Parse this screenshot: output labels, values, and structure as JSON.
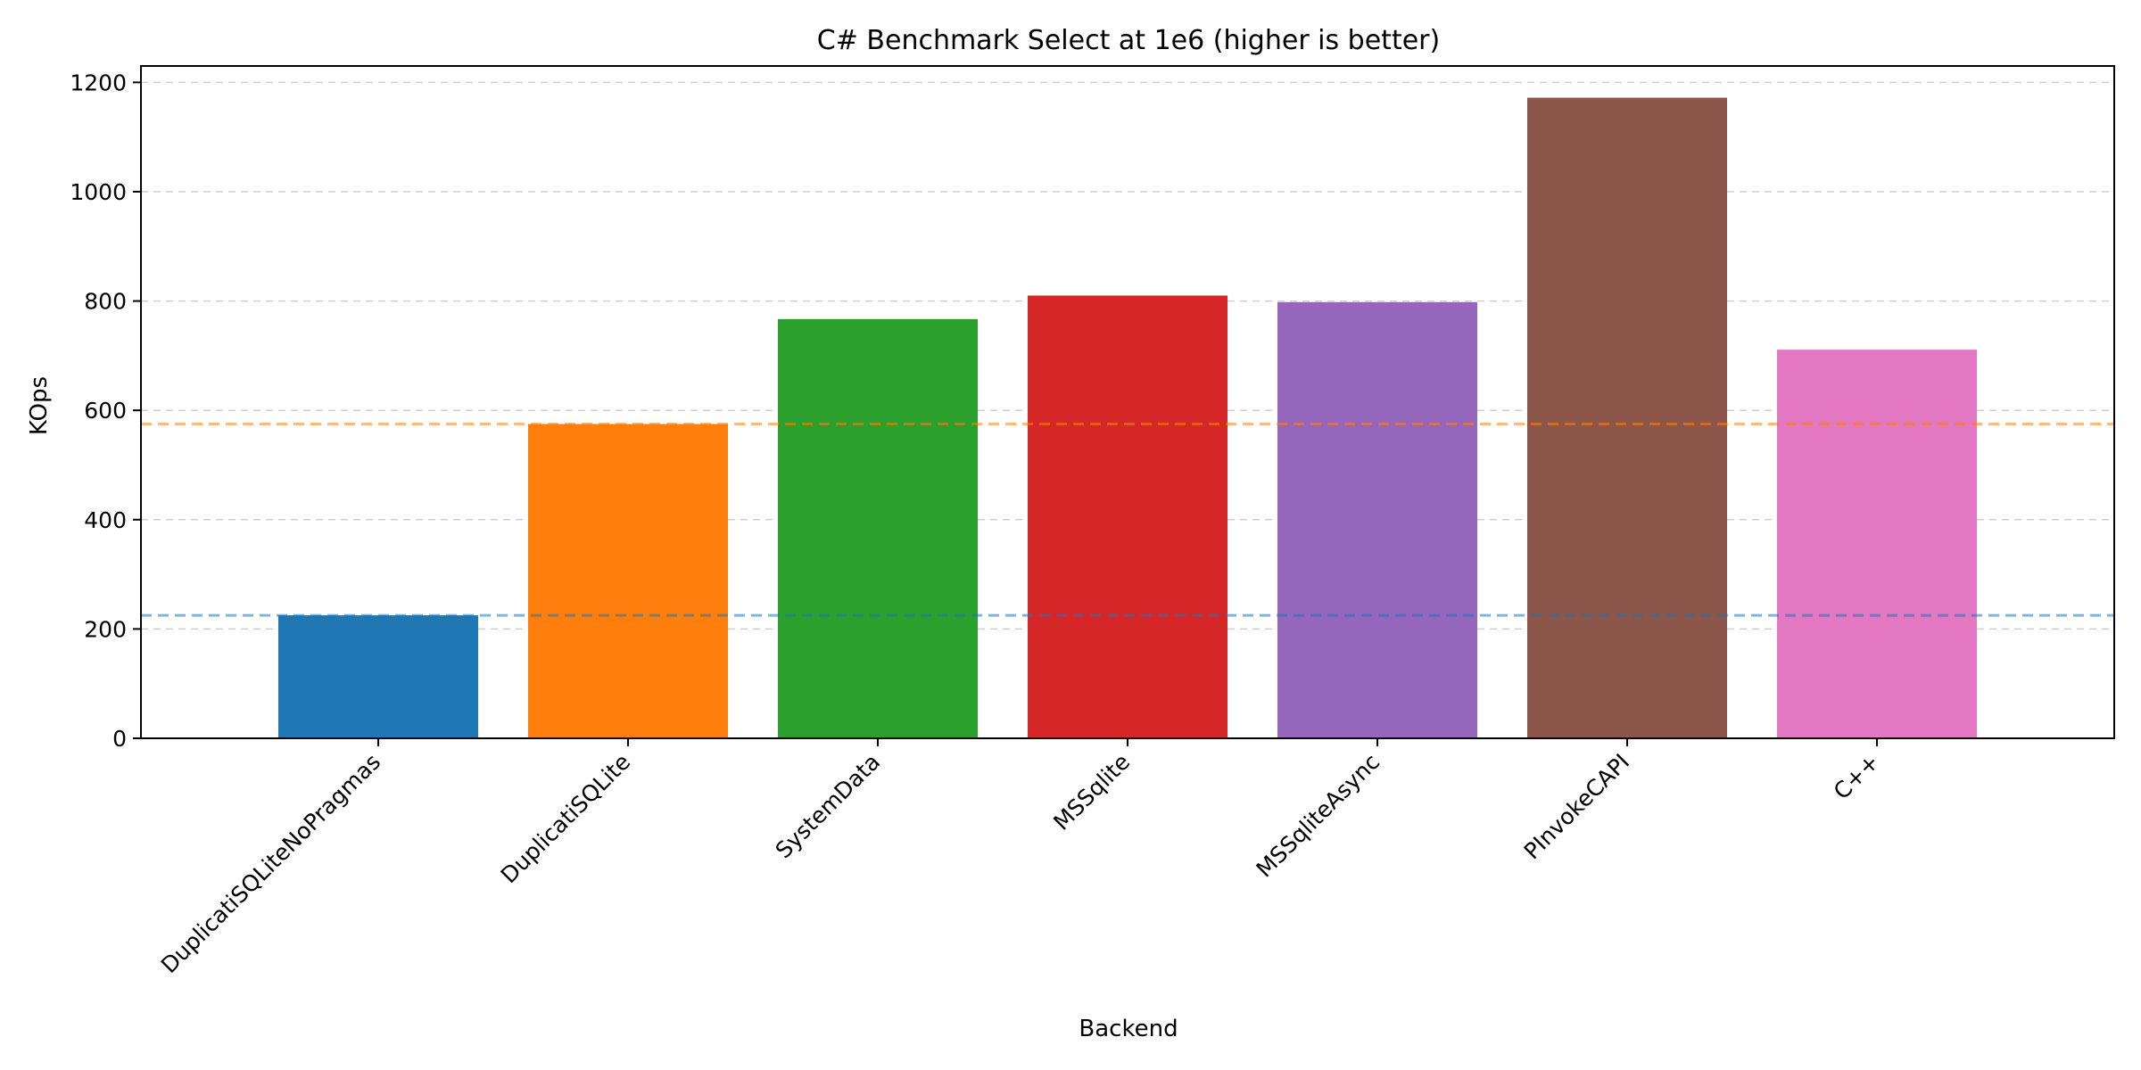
{
  "chart_data": {
    "type": "bar",
    "title": "C# Benchmark Select at 1e6 (higher is better)",
    "xlabel": "Backend",
    "ylabel": "KOps",
    "categories": [
      "DuplicatiSQLiteNoPragmas",
      "DuplicatiSQLite",
      "SystemData",
      "MSSqlite",
      "MSSqliteAsync",
      "PInvokeCAPI",
      "C++"
    ],
    "values": [
      225,
      575,
      767,
      810,
      798,
      1172,
      711
    ],
    "colors": [
      "#1f77b4",
      "#ff7f0e",
      "#2ca02c",
      "#d62728",
      "#9467bd",
      "#8c564b",
      "#e377c2"
    ],
    "ylim": [
      0,
      1230
    ],
    "yticks": [
      0,
      200,
      400,
      600,
      800,
      1000,
      1200
    ],
    "grid": "y-dashed",
    "reference_lines": [
      {
        "value": 225,
        "color": "#1f77b4"
      },
      {
        "value": 575,
        "color": "#ff7f0e"
      }
    ]
  }
}
